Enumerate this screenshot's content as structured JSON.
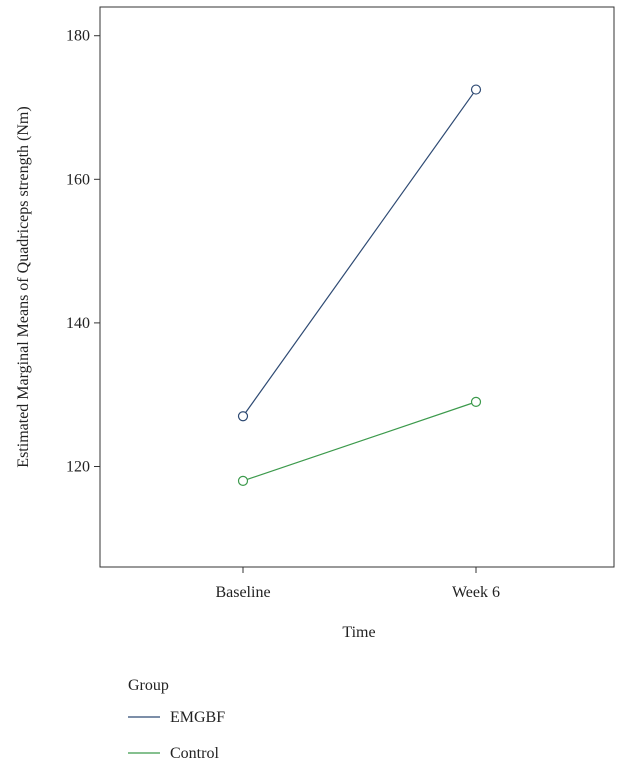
{
  "chart_data": {
    "type": "line",
    "xlabel": "Time",
    "ylabel": "Estimated Marginal Means of Quadriceps strength (Nm)",
    "categories": [
      "Baseline",
      "Week 6"
    ],
    "ylim": [
      106,
      184
    ],
    "yticks": [
      120,
      140,
      160,
      180
    ],
    "grid": false,
    "legend": {
      "title": "Group",
      "placement": "bottom-left"
    },
    "series": [
      {
        "name": "EMGBF",
        "color": "#2e4a73",
        "values": [
          127,
          172.5
        ]
      },
      {
        "name": "Control",
        "color": "#3c9a4c",
        "values": [
          118,
          129
        ]
      }
    ]
  }
}
